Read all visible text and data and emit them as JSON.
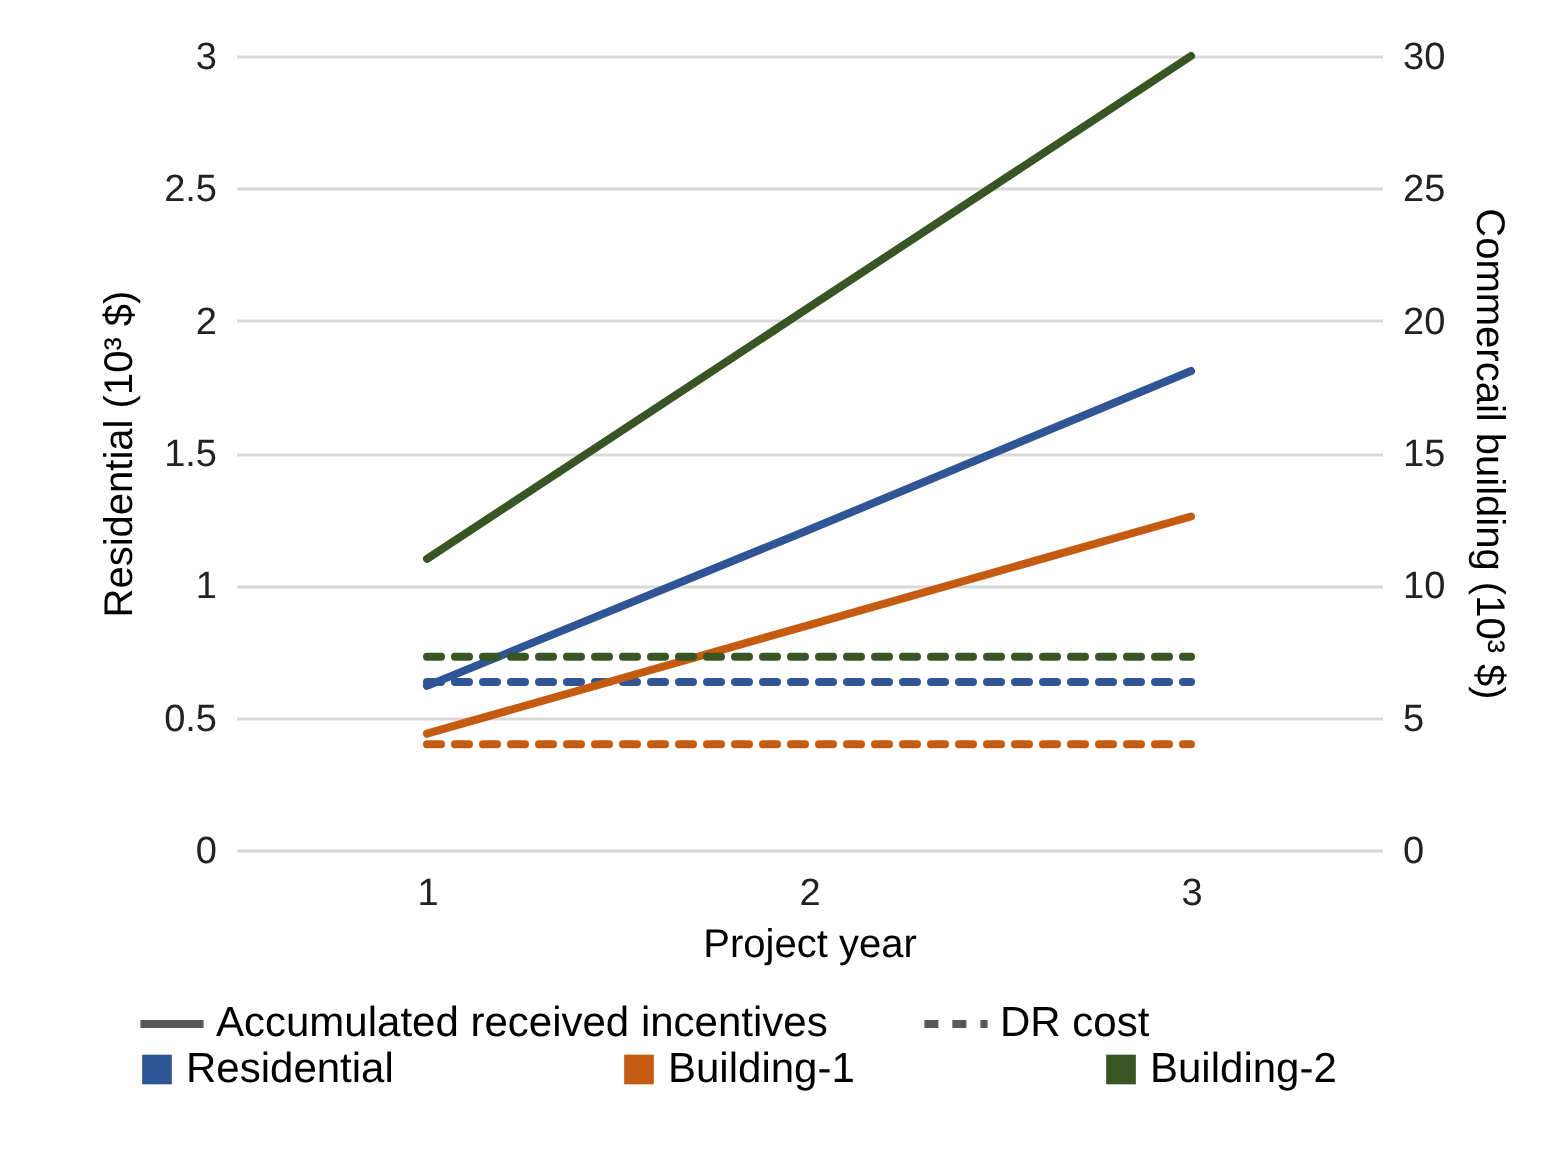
{
  "chart_data": {
    "type": "line",
    "xlabel": "Project year",
    "ylabel": "Residential (10³ $)",
    "y2label": "Commercail building (10³ $)",
    "categories": [
      "1",
      "2",
      "3"
    ],
    "series": [
      {
        "name": "Residential",
        "color": "#2f5597",
        "values": [
          0.62,
          1.21,
          1.81
        ],
        "line_style": "solid"
      },
      {
        "name": "Building-1",
        "color": "#c55a11",
        "values": [
          4.4,
          8.5,
          12.6
        ],
        "line_style": "solid",
        "axis": "y2"
      },
      {
        "name": "Building-2",
        "color": "#375623",
        "values": [
          11,
          20.5,
          30
        ],
        "line_style": "solid",
        "axis": "y2"
      },
      {
        "color": "#2f5597",
        "values": [
          0.635,
          0.635,
          0.635
        ],
        "line_style": "dashed"
      },
      {
        "color": "#c55a11",
        "values": [
          4.0,
          4.0,
          4.0
        ],
        "line_style": "dashed",
        "axis": "y2"
      },
      {
        "color": "#375623",
        "values": [
          7.3,
          7.3,
          7.3
        ],
        "line_style": "dashed",
        "axis": "y2"
      }
    ],
    "annotations": [
      "Accumulated received incentives",
      "DR cost"
    ],
    "ylim": [
      0,
      3
    ],
    "yticks": [
      0,
      0.5,
      1,
      1.5,
      2,
      2.5,
      3
    ],
    "y2lim": [
      0,
      30
    ],
    "y2ticks": [
      0,
      5,
      10,
      15,
      20,
      25,
      30
    ],
    "grid": "y",
    "legend": "bottom"
  }
}
